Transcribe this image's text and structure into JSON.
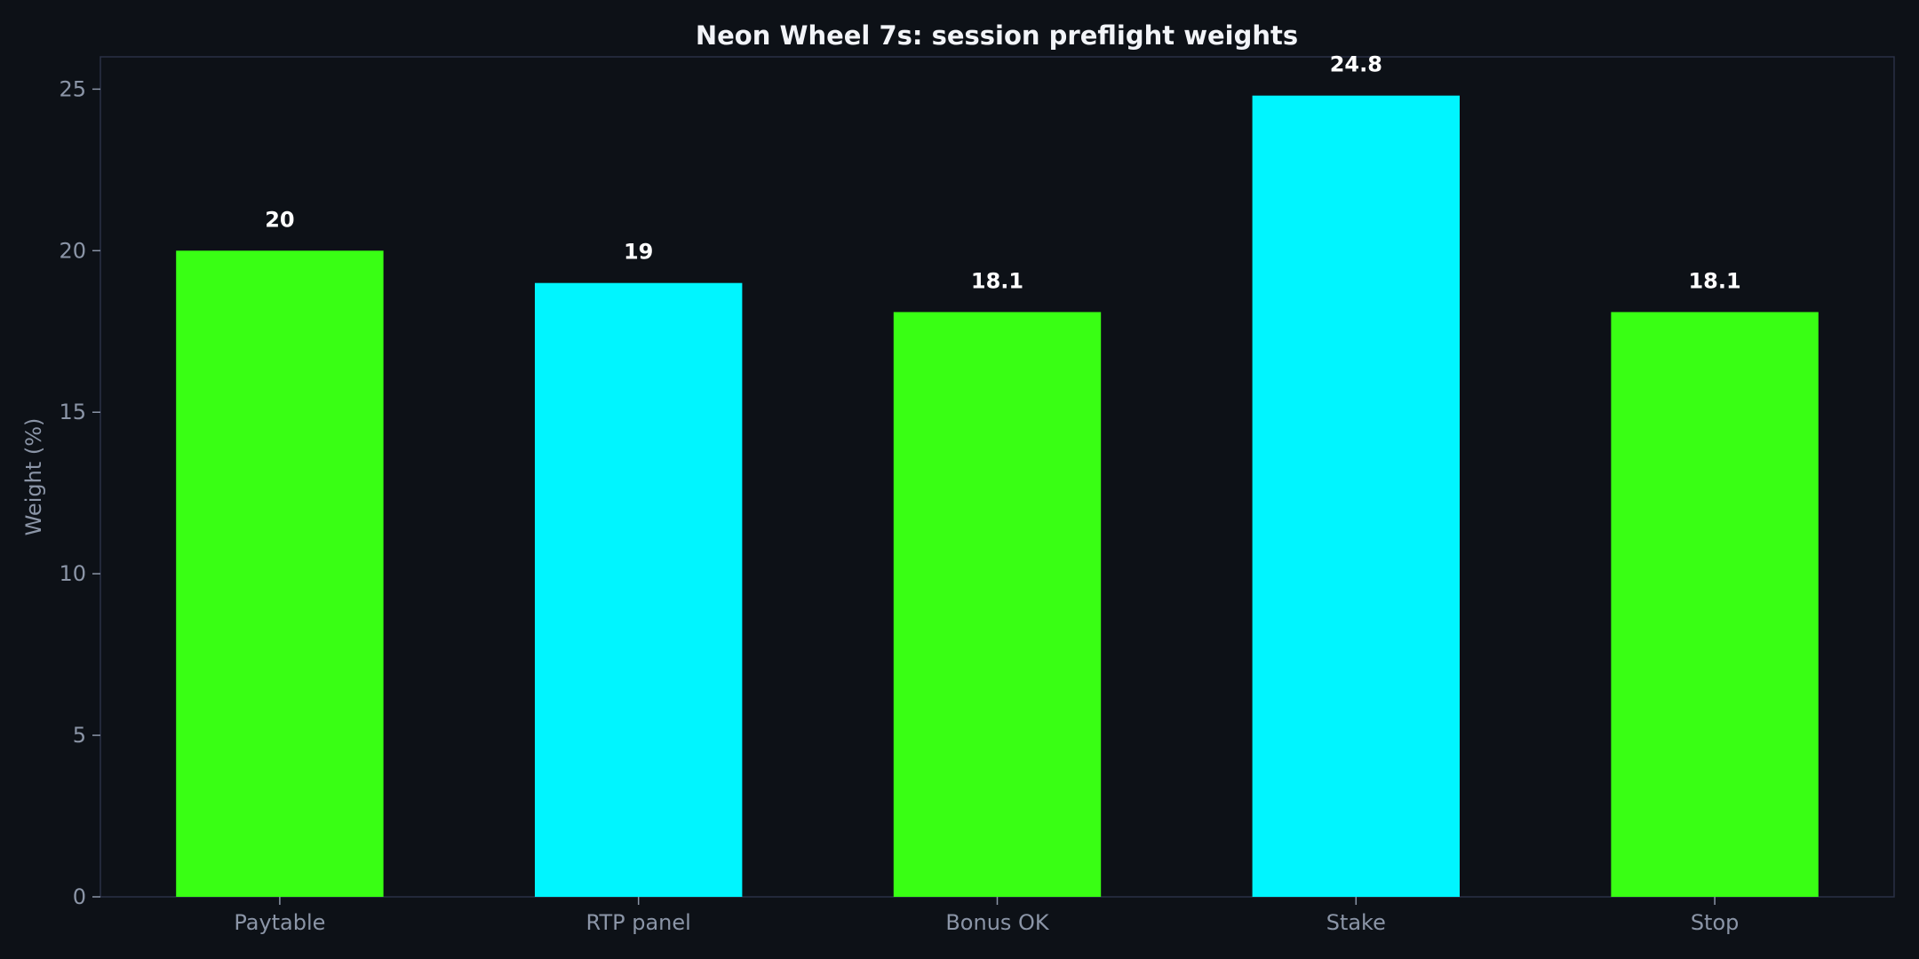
{
  "chart_data": {
    "type": "bar",
    "title": "Neon Wheel 7s: session preflight weights",
    "xlabel": "",
    "ylabel": "Weight (%)",
    "categories": [
      "Paytable",
      "RTP panel",
      "Bonus OK",
      "Stake",
      "Stop"
    ],
    "values": [
      20,
      19,
      18.1,
      24.8,
      18.1
    ],
    "data_labels": [
      "20",
      "19",
      "18.1",
      "24.8",
      "18.1"
    ],
    "bar_colors": [
      "#39ff14",
      "#00f5ff",
      "#39ff14",
      "#00f5ff",
      "#39ff14"
    ],
    "ylim": [
      0,
      26
    ],
    "yticks": [
      0,
      5,
      10,
      15,
      20,
      25
    ],
    "ytick_labels": [
      "0",
      "5",
      "10",
      "15",
      "20",
      "25"
    ],
    "grid": false,
    "legend": "none"
  },
  "colors": {
    "background": "#0d1117",
    "plot_border": "#2a3146",
    "tick_text": "#8b95a7",
    "title_text": "#f2f4f8",
    "data_label_text": "#ffffff"
  }
}
